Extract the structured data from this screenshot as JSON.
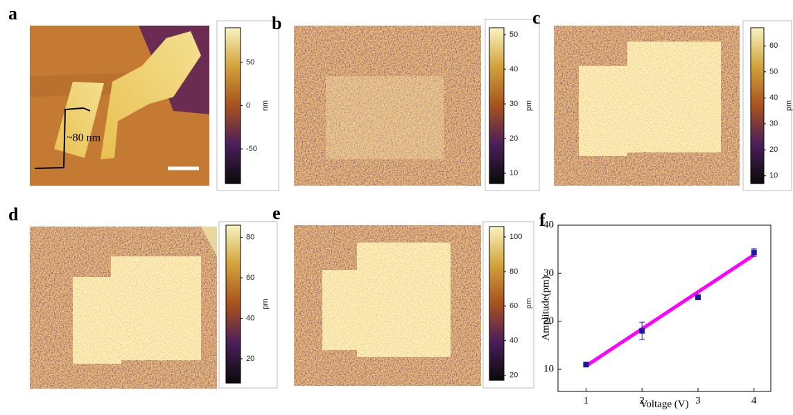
{
  "panels": {
    "a": {
      "label": "a",
      "annotation": "~80 nm",
      "colorbar": {
        "unit": "nm",
        "lim": [
          -90,
          90
        ],
        "ticks": [
          -50,
          0,
          50
        ]
      }
    },
    "b": {
      "label": "b",
      "colorbar": {
        "unit": "pm",
        "lim": [
          7,
          52
        ],
        "ticks": [
          10,
          20,
          30,
          40,
          50
        ]
      }
    },
    "c": {
      "label": "c",
      "colorbar": {
        "unit": "pm",
        "lim": [
          7,
          67
        ],
        "ticks": [
          10,
          20,
          30,
          40,
          50,
          60
        ]
      }
    },
    "d": {
      "label": "d",
      "colorbar": {
        "unit": "pm",
        "lim": [
          8,
          86
        ],
        "ticks": [
          20,
          40,
          60,
          80
        ]
      }
    },
    "e": {
      "label": "e",
      "colorbar": {
        "unit": "pm",
        "lim": [
          17,
          106
        ],
        "ticks": [
          20,
          40,
          60,
          80,
          100
        ]
      }
    }
  },
  "chart_data": {
    "type": "scatter",
    "label": "f",
    "x_label": "Voltage (V)",
    "y_label": "Amplitude(pm)",
    "x": [
      1,
      2,
      3,
      4
    ],
    "values": [
      11,
      18,
      25,
      34.3
    ],
    "errors": [
      0.5,
      1.8,
      0.5,
      0.8
    ],
    "color": "#1a1aa0",
    "fit": {
      "x": [
        1,
        4
      ],
      "values": [
        10.7,
        33.8
      ],
      "color": "#ff00ff"
    },
    "xlim": [
      0.5,
      4.3
    ],
    "ylim": [
      5.4,
      40
    ],
    "xticks": [
      1,
      2,
      3,
      4
    ],
    "yticks": [
      10,
      20,
      30,
      40
    ]
  }
}
